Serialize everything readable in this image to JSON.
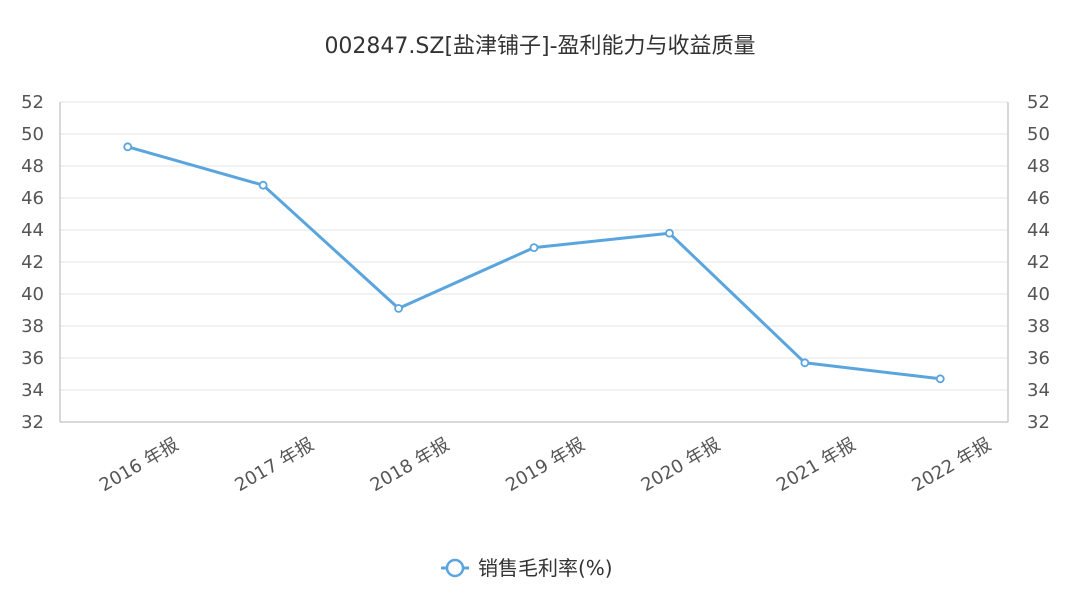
{
  "chart_data": {
    "type": "line",
    "title": "002847.SZ[盐津铺子]-盈利能力与收益质量",
    "categories": [
      "2016 年报",
      "2017 年报",
      "2018 年报",
      "2019 年报",
      "2020 年报",
      "2021 年报",
      "2022 年报"
    ],
    "series": [
      {
        "name": "销售毛利率(%)",
        "values": [
          49.2,
          46.8,
          39.1,
          42.9,
          43.8,
          35.7,
          34.7
        ],
        "color": "#5aa5de"
      }
    ],
    "ylim": [
      32,
      52
    ],
    "yticks": [
      32,
      34,
      36,
      38,
      40,
      42,
      44,
      46,
      48,
      50,
      52
    ],
    "left_axis_ticks": [
      "32",
      "34",
      "36",
      "38",
      "40",
      "42",
      "44",
      "46",
      "48",
      "50",
      "52"
    ],
    "right_axis_ticks": [
      "32",
      "34",
      "36",
      "38",
      "40",
      "42",
      "44",
      "46",
      "48",
      "50",
      "52"
    ],
    "grid": true,
    "legend_position": "bottom-center"
  }
}
